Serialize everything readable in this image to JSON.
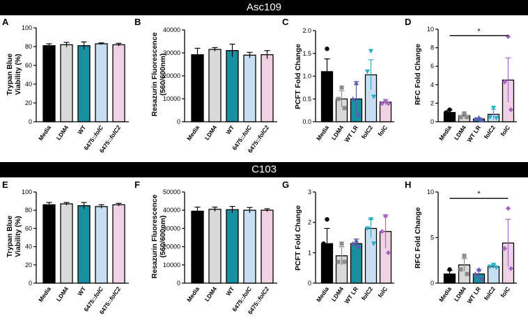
{
  "banners": {
    "top": "Asc109",
    "bottom": "C103"
  },
  "colors": {
    "Media": "#000000",
    "LDM4": "#d9d9d9",
    "WT": "#1a8fa0",
    "WT LR": "#1a8fa0",
    "6475::folC": "#c8def2",
    "6475::folC2": "#efd3e5",
    "folC2": "#c8def2",
    "folC": "#efd3e5",
    "pt_Media": "#000000",
    "pt_LDM4": "#8c8c8c",
    "pt_WT LR": "#5b5bb0",
    "pt_folC2": "#2aaec4",
    "pt_folC": "#a766c2"
  },
  "chart_data": [
    {
      "id": "A",
      "letter": "A",
      "type": "bar",
      "title": "",
      "ylabel": [
        "Trypan Blue",
        "Viability (%)"
      ],
      "categories": [
        "Media",
        "LDM4",
        "WT",
        "6475::folC",
        "6475::folC2"
      ],
      "values": [
        81,
        82,
        81,
        83,
        82
      ],
      "errors": [
        2,
        2.5,
        4,
        1,
        1.5
      ],
      "ylim": [
        0,
        100
      ],
      "yticks": [
        0,
        20,
        40,
        60,
        80,
        100
      ],
      "italic_labels": true
    },
    {
      "id": "B",
      "letter": "B",
      "type": "bar",
      "title": "",
      "ylabel": [
        "Resazurin Fluorescence",
        "(560/600nm)"
      ],
      "categories": [
        "Media",
        "LDM4",
        "WT",
        "6475::folC",
        "6475::folC2"
      ],
      "values": [
        29200,
        31500,
        31000,
        29000,
        29200
      ],
      "errors": [
        2800,
        800,
        2800,
        1200,
        1800
      ],
      "ylim": [
        0,
        40000
      ],
      "yticks": [
        0,
        10000,
        20000,
        30000,
        40000
      ],
      "italic_labels": true
    },
    {
      "id": "C",
      "letter": "C",
      "type": "bar",
      "title": "",
      "ylabel": [
        "PCFT Fold Change"
      ],
      "categories": [
        "Media",
        "LDM4",
        "WT LR",
        "folC2",
        "folC"
      ],
      "values": [
        1.1,
        0.5,
        0.5,
        1.03,
        0.43
      ],
      "errors": [
        0.28,
        0.18,
        0.38,
        0.33,
        0.06
      ],
      "points": [
        [
          1.6,
          0.95,
          0.75
        ],
        [
          0.75,
          0.5,
          0.3
        ],
        [
          0.85,
          0.5,
          0.15
        ],
        [
          1.55,
          1.1,
          0.55
        ],
        [
          0.45,
          0.4,
          0.4
        ]
      ],
      "markers": [
        "circle",
        "square",
        "triangle-up",
        "triangle-down",
        "diamond"
      ],
      "ylim": [
        0,
        2.0
      ],
      "yticks": [
        0.0,
        0.5,
        1.0,
        1.5,
        2.0
      ],
      "tick_decimals": 1
    },
    {
      "id": "D",
      "letter": "D",
      "type": "bar",
      "title": "",
      "ylabel": [
        "RFC Fold Change"
      ],
      "categories": [
        "Media",
        "LDM4",
        "WT LR",
        "folC2",
        "folC"
      ],
      "values": [
        1.0,
        0.65,
        0.3,
        0.8,
        4.5
      ],
      "errors": [
        0.3,
        0.2,
        0.12,
        0.55,
        2.4
      ],
      "points": [
        [
          1.3,
          1.0,
          0.8
        ],
        [
          0.9,
          0.5,
          0.5
        ],
        [
          0.45,
          0.3,
          0.2
        ],
        [
          1.5,
          0.5,
          0.4
        ],
        [
          9.2,
          4.3,
          1.3
        ]
      ],
      "markers": [
        "circle",
        "square",
        "triangle-up",
        "triangle-down",
        "diamond"
      ],
      "ylim": [
        0,
        10
      ],
      "yticks": [
        0,
        2,
        4,
        6,
        8,
        10
      ],
      "significance": {
        "from": "Media",
        "to": "folC",
        "label": "*",
        "y": 9.3
      }
    },
    {
      "id": "E",
      "letter": "E",
      "type": "bar",
      "title": "",
      "ylabel": [
        "Trypan Blue",
        "Viability (%)"
      ],
      "categories": [
        "Media",
        "LDM4",
        "WT",
        "6475::folC",
        "6475::folC2"
      ],
      "values": [
        86,
        87,
        85,
        84,
        86
      ],
      "errors": [
        2.5,
        1.5,
        3.5,
        2,
        1.5
      ],
      "ylim": [
        0,
        100
      ],
      "yticks": [
        0,
        20,
        40,
        60,
        80,
        100
      ],
      "italic_labels": true
    },
    {
      "id": "F",
      "letter": "F",
      "type": "bar",
      "title": "",
      "ylabel": [
        "Resazurin Fluorescence",
        "(560/600nm)"
      ],
      "categories": [
        "Media",
        "LDM4",
        "WT",
        "6475::folC",
        "6475::folC2"
      ],
      "values": [
        39500,
        40500,
        40300,
        40000,
        40000
      ],
      "errors": [
        2200,
        1200,
        1800,
        1500,
        800
      ],
      "ylim": [
        0,
        50000
      ],
      "yticks": [
        0,
        10000,
        20000,
        30000,
        40000,
        50000
      ],
      "italic_labels": true
    },
    {
      "id": "G",
      "letter": "G",
      "type": "bar",
      "title": "",
      "ylabel": [
        "PCFT Fold Change"
      ],
      "categories": [
        "Media",
        "LDM4",
        "WT LR",
        "folC2",
        "folC"
      ],
      "values": [
        1.3,
        0.9,
        1.3,
        1.8,
        1.7
      ],
      "errors": [
        0.5,
        0.3,
        0.15,
        0.3,
        0.55
      ],
      "points": [
        [
          2.1,
          1.3,
          0.3
        ],
        [
          1.3,
          0.7,
          0.7
        ],
        [
          1.4,
          1.3,
          1.2
        ],
        [
          2.1,
          1.8,
          1.3
        ],
        [
          2.2,
          1.7,
          1.0
        ]
      ],
      "markers": [
        "circle",
        "square",
        "triangle-up",
        "triangle-down",
        "diamond"
      ],
      "ylim": [
        0,
        3
      ],
      "yticks": [
        0,
        1,
        2,
        3
      ]
    },
    {
      "id": "H",
      "letter": "H",
      "type": "bar",
      "title": "",
      "ylabel": [
        "RFC Fold Change"
      ],
      "categories": [
        "Media",
        "LDM4",
        "WT LR",
        "folC2",
        "folC"
      ],
      "values": [
        1.0,
        2.0,
        1.0,
        1.8,
        4.4
      ],
      "errors": [
        0.4,
        0.7,
        0.5,
        0.2,
        2.6
      ],
      "points": [
        [
          1.5,
          0.7,
          0.5
        ],
        [
          3.0,
          1.5,
          1.0
        ],
        [
          1.5,
          1.0,
          0.5
        ],
        [
          2.0,
          1.8,
          1.7
        ],
        [
          8.2,
          3.8,
          1.6
        ]
      ],
      "markers": [
        "circle",
        "square",
        "triangle-up",
        "triangle-down",
        "diamond"
      ],
      "ylim": [
        0,
        10
      ],
      "yticks": [
        0,
        5,
        10
      ],
      "significance": {
        "from": "Media",
        "to": "folC",
        "label": "*",
        "y": 9.3
      }
    }
  ]
}
